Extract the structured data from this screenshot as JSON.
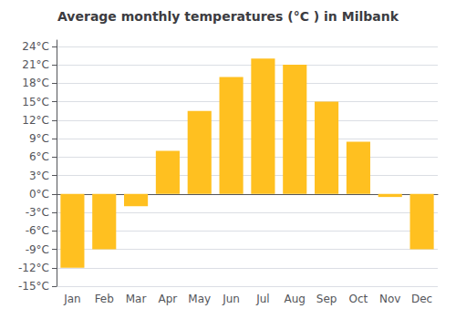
{
  "chart_data": {
    "type": "bar",
    "title": "Average monthly temperatures (°C ) in Milbank",
    "categories": [
      "Jan",
      "Feb",
      "Mar",
      "Apr",
      "May",
      "Jun",
      "Jul",
      "Aug",
      "Sep",
      "Oct",
      "Nov",
      "Dec"
    ],
    "values": [
      -12,
      -9,
      -2,
      7,
      13.5,
      19,
      22,
      21,
      15,
      8.5,
      -0.5,
      -9
    ],
    "color": "#FFC020",
    "ylim": [
      -15,
      25
    ],
    "yticks": [
      {
        "value": -15,
        "label": "-15°C"
      },
      {
        "value": -12,
        "label": "-12°C"
      },
      {
        "value": -9,
        "label": "-9°C"
      },
      {
        "value": -6,
        "label": "-6°C"
      },
      {
        "value": -3,
        "label": "-3°C"
      },
      {
        "value": 0,
        "label": "0°C"
      },
      {
        "value": 3,
        "label": "3°C"
      },
      {
        "value": 6,
        "label": "6°C"
      },
      {
        "value": 9,
        "label": "9°C"
      },
      {
        "value": 12,
        "label": "12°C"
      },
      {
        "value": 15,
        "label": "15°C"
      },
      {
        "value": 18,
        "label": "18°C"
      },
      {
        "value": 21,
        "label": "21°C"
      },
      {
        "value": 24,
        "label": "24°C"
      }
    ],
    "grid": true
  }
}
